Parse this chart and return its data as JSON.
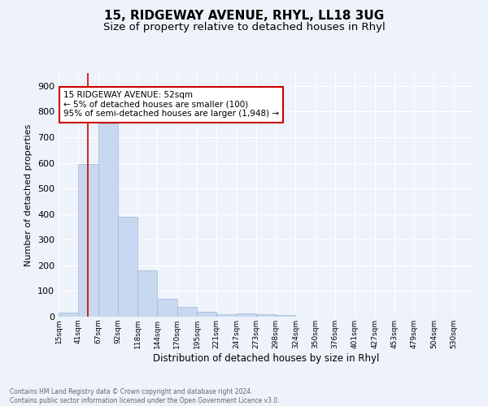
{
  "title1": "15, RIDGEWAY AVENUE, RHYL, LL18 3UG",
  "title2": "Size of property relative to detached houses in Rhyl",
  "xlabel": "Distribution of detached houses by size in Rhyl",
  "ylabel": "Number of detached properties",
  "footnote": "Contains HM Land Registry data © Crown copyright and database right 2024.\nContains public sector information licensed under the Open Government Licence v3.0.",
  "bar_labels": [
    "15sqm",
    "41sqm",
    "67sqm",
    "92sqm",
    "118sqm",
    "144sqm",
    "170sqm",
    "195sqm",
    "221sqm",
    "247sqm",
    "273sqm",
    "298sqm",
    "324sqm",
    "350sqm",
    "376sqm",
    "401sqm",
    "427sqm",
    "453sqm",
    "479sqm",
    "504sqm",
    "530sqm"
  ],
  "bar_values": [
    15,
    595,
    755,
    390,
    180,
    70,
    38,
    18,
    10,
    12,
    10,
    7,
    0,
    0,
    0,
    0,
    0,
    0,
    0,
    0,
    0
  ],
  "bar_color": "#c8d8f0",
  "bar_edge_color": "#a0b8d8",
  "property_line_x": 1.5,
  "annotation_text": "15 RIDGEWAY AVENUE: 52sqm\n← 5% of detached houses are smaller (100)\n95% of semi-detached houses are larger (1,948) →",
  "annotation_box_color": "#ffffff",
  "annotation_border_color": "#cc0000",
  "line_color": "#cc0000",
  "ylim": [
    0,
    950
  ],
  "yticks": [
    0,
    100,
    200,
    300,
    400,
    500,
    600,
    700,
    800,
    900
  ],
  "bg_color": "#eef2fa",
  "grid_color": "#ffffff",
  "title_fontsize": 11,
  "subtitle_fontsize": 9.5,
  "footnote_fontsize": 5.5,
  "ylabel_fontsize": 8,
  "xlabel_fontsize": 8.5
}
